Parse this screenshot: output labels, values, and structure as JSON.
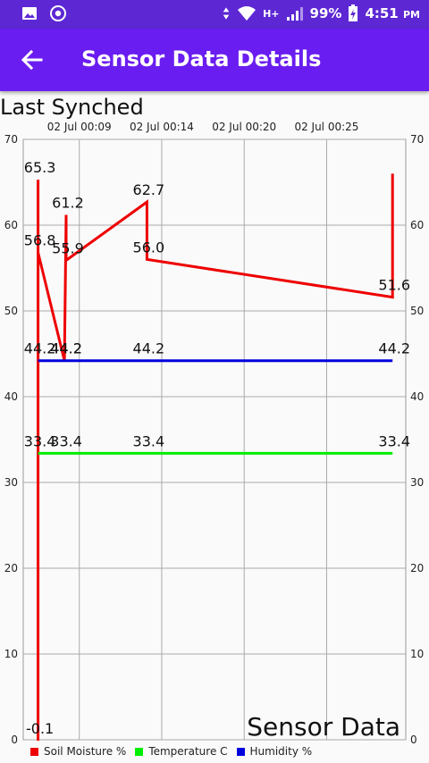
{
  "statusbar": {
    "battery": "99%",
    "time": "4:51",
    "ampm": "PM",
    "network": "H+"
  },
  "toolbar": {
    "title": "Sensor Data Details"
  },
  "header": {
    "last_synched": "Last Synched"
  },
  "chart_description": "Sensor Data",
  "colors": {
    "statusbar": "#5d28d4",
    "toolbar": "#6a1df0",
    "soil": "#ee0000",
    "temp": "#00ee00",
    "hum": "#0000dd"
  },
  "chart_data": {
    "type": "line",
    "x_tick_labels": [
      {
        "date": "02 Jul",
        "time": "00:09"
      },
      {
        "date": "02 Jul",
        "time": "00:14"
      },
      {
        "date": "02 Jul",
        "time": "00:20"
      },
      {
        "date": "02 Jul",
        "time": "00:25"
      }
    ],
    "x_ticks": [
      9.4,
      14.4,
      19.4,
      24.4
    ],
    "xlim": [
      6.0,
      29.2
    ],
    "ylim": [
      0,
      70
    ],
    "y_ticks": [
      0,
      10,
      20,
      30,
      40,
      50,
      60,
      70
    ],
    "grid": true,
    "legend_position": "bottom-left",
    "series": [
      {
        "name": "Soil Moisture %",
        "color": "#ee0000",
        "points": [
          {
            "x": 6.9,
            "y": -0.1,
            "label": "-0.1"
          },
          {
            "x": 6.9,
            "y": 65.3,
            "label": "65.3"
          },
          {
            "x": 6.9,
            "y": 56.8,
            "label": "56.8"
          },
          {
            "x": 8.5,
            "y": 44.2,
            "label": "44.2"
          },
          {
            "x": 8.6,
            "y": 61.2,
            "label": "61.2"
          },
          {
            "x": 8.6,
            "y": 55.9,
            "label": "55.9"
          },
          {
            "x": 13.5,
            "y": 62.7,
            "label": "62.7"
          },
          {
            "x": 13.5,
            "y": 56.0,
            "label": "56.0"
          },
          {
            "x": 28.4,
            "y": 51.6,
            "label": "51.6"
          },
          {
            "x": 28.4,
            "y": 66.0,
            "label": ""
          }
        ]
      },
      {
        "name": "Temperature C",
        "color": "#00ee00",
        "points": [
          {
            "x": 6.9,
            "y": 33.4,
            "label": "33.4"
          },
          {
            "x": 8.5,
            "y": 33.4,
            "label": "33.4"
          },
          {
            "x": 13.5,
            "y": 33.4,
            "label": "33.4"
          },
          {
            "x": 28.4,
            "y": 33.4,
            "label": "33.4"
          }
        ]
      },
      {
        "name": "Humidity %",
        "color": "#0000dd",
        "points": [
          {
            "x": 6.9,
            "y": 44.2,
            "label": "44.2"
          },
          {
            "x": 8.5,
            "y": 44.2,
            "label": "44.2"
          },
          {
            "x": 13.5,
            "y": 44.2,
            "label": "44.2"
          },
          {
            "x": 28.4,
            "y": 44.2,
            "label": "44.2"
          }
        ]
      }
    ]
  }
}
